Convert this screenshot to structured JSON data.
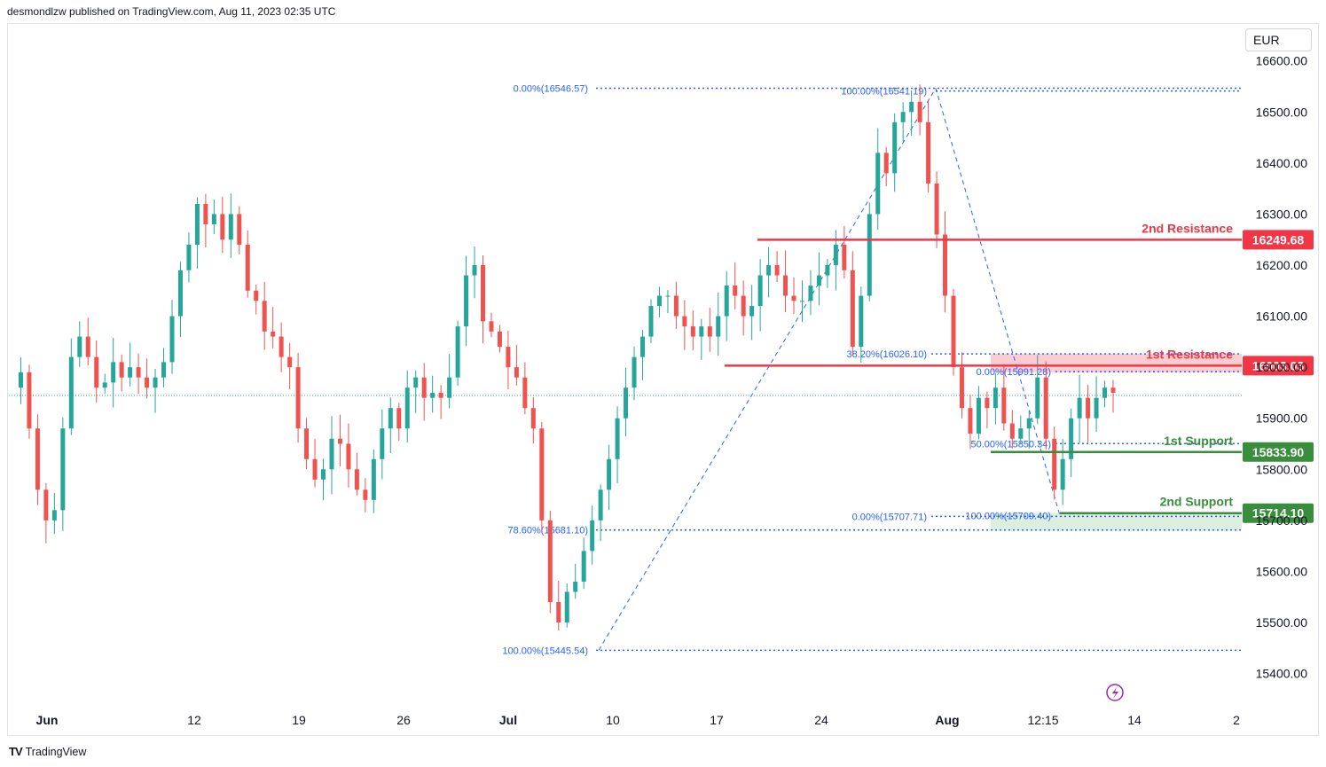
{
  "header": {
    "publisher_text": "desmondlzw published on TradingView.com, Aug 11, 2023 02:35 UTC"
  },
  "currency": "EUR",
  "footer": {
    "brand": "TradingView"
  },
  "colors": {
    "up": "#26a69a",
    "down": "#ef5350",
    "resistance": "#f23645",
    "support": "#388e3c",
    "fib": "#2962ff"
  },
  "chart_data": {
    "type": "candlestick",
    "y_axis": {
      "ticks": [
        15400,
        15500,
        15600,
        15700,
        15800,
        15900,
        16000,
        16100,
        16200,
        16300,
        16400,
        16500,
        16600
      ],
      "tick_labels": [
        "15400.00",
        "15500.00",
        "15600.00",
        "15700.00",
        "15800.00",
        "15900.00",
        "16000.00",
        "16100.00",
        "16200.00",
        "16300.00",
        "16400.00",
        "16500.00",
        "16600.00"
      ],
      "ylim": [
        15350,
        16650
      ]
    },
    "x_axis": {
      "labels": [
        "Jun",
        "12",
        "19",
        "26",
        "Jul",
        "10",
        "17",
        "24",
        "Aug",
        "12:15",
        "14",
        "2"
      ],
      "bold": [
        "Jun",
        "Jul",
        "Aug"
      ]
    },
    "last_price": 15945,
    "levels": [
      {
        "name": "2nd Resistance",
        "value": 16249.68,
        "label": "16249.68",
        "kind": "resistance",
        "x_start": "Jul 20"
      },
      {
        "name": "1st Resistance",
        "value": 16003.03,
        "label": "16003.03",
        "kind": "resistance",
        "x_start": "Jul 17"
      },
      {
        "name": "1st Support",
        "value": 15833.9,
        "label": "15833.90",
        "kind": "support",
        "x_start": "Aug 3"
      },
      {
        "name": "2nd Support",
        "value": 15714.1,
        "label": "15714.10",
        "kind": "support",
        "x_start": "Aug 9"
      }
    ],
    "fib_labels": [
      {
        "text": "0.00%(16546.57)",
        "value": 16546.57
      },
      {
        "text": "100.00%(16541.19)",
        "value": 16541.19
      },
      {
        "text": "38.20%(16026.10)",
        "value": 16026.1
      },
      {
        "text": "0.00%(15991.28)",
        "value": 15991.28
      },
      {
        "text": "50.00%(15850.34)",
        "value": 15850.34
      },
      {
        "text": "78.60%(15681.10)",
        "value": 15681.1
      },
      {
        "text": "0.00%(15707.71)",
        "value": 15707.71
      },
      {
        "text": "100.00%(15709.40)",
        "value": 15709.4
      },
      {
        "text": "100.00%(15445.54)",
        "value": 15445.54
      }
    ],
    "zones": [
      {
        "name": "resistance-zone",
        "from": 15990,
        "to": 16026,
        "kind": "resistance"
      },
      {
        "name": "support-zone",
        "from": 15680,
        "to": 15714,
        "kind": "support"
      }
    ],
    "close_path": [
      15960,
      15990,
      15880,
      15760,
      15700,
      15720,
      15880,
      16020,
      16060,
      16020,
      15960,
      15970,
      16010,
      15980,
      16000,
      15980,
      15960,
      15980,
      16010,
      16100,
      16190,
      16240,
      16320,
      16280,
      16300,
      16250,
      16300,
      16240,
      16150,
      16130,
      16070,
      16060,
      16020,
      16000,
      15880,
      15820,
      15780,
      15800,
      15860,
      15850,
      15800,
      15760,
      15740,
      15820,
      15880,
      15920,
      15880,
      15960,
      15980,
      15940,
      15950,
      15940,
      15980,
      16080,
      16180,
      16200,
      16090,
      16070,
      16040,
      16000,
      15980,
      15920,
      15880,
      15700,
      15540,
      15500,
      15560,
      15580,
      15640,
      15700,
      15760,
      15820,
      15900,
      15960,
      16020,
      16060,
      16120,
      16140,
      16140,
      16100,
      16080,
      16060,
      16080,
      16060,
      16100,
      16160,
      16140,
      16100,
      16120,
      16180,
      16200,
      16180,
      16140,
      16130,
      16130,
      16160,
      16180,
      16200,
      16240,
      16190,
      16040,
      16140,
      16300,
      16420,
      16380,
      16480,
      16500,
      16520,
      16480,
      16360,
      16260,
      16140,
      16000,
      15920,
      15870,
      15940,
      15920,
      15960,
      15890,
      15860,
      15880,
      15900,
      15980,
      15860,
      15760,
      15820,
      15900,
      15940,
      15900,
      15940,
      15960,
      15950
    ]
  }
}
